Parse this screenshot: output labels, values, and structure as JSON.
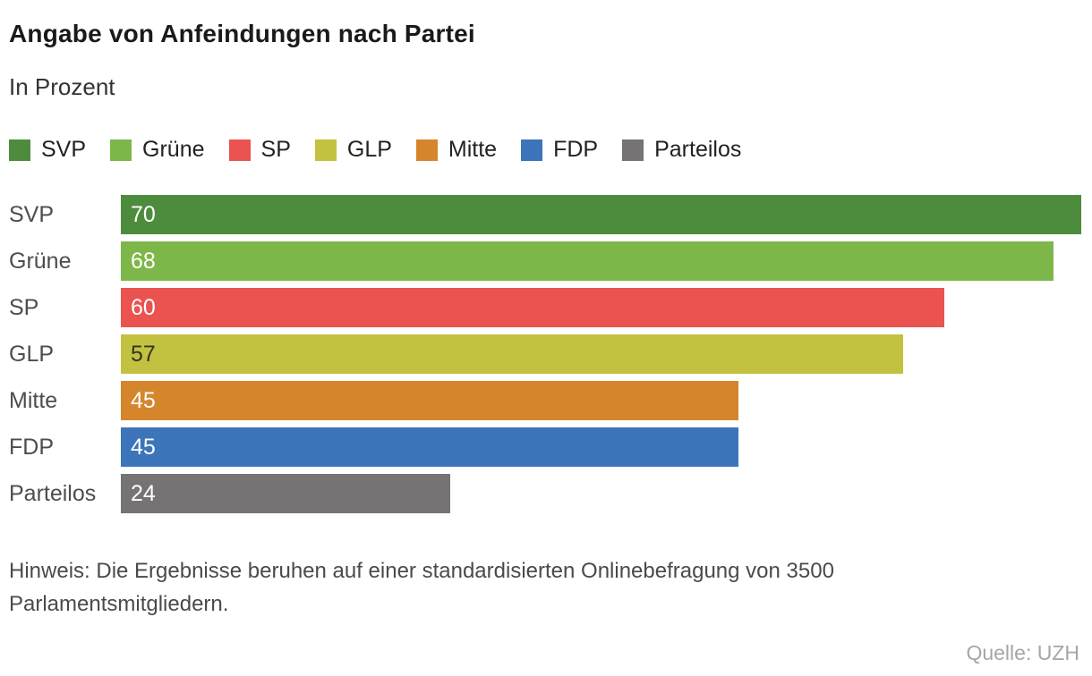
{
  "chart_data": {
    "type": "bar",
    "orientation": "horizontal",
    "title": "Angabe von Anfeindungen nach Partei",
    "subtitle": "In Prozent",
    "categories": [
      "SVP",
      "Grüne",
      "SP",
      "GLP",
      "Mitte",
      "FDP",
      "Parteilos"
    ],
    "values": [
      70,
      68,
      60,
      57,
      45,
      45,
      24
    ],
    "colors": [
      "#4e8c3d",
      "#7db74a",
      "#ea534f",
      "#c3c240",
      "#d5862c",
      "#3c75b9",
      "#757373"
    ],
    "value_label_colors": [
      "#ffffff",
      "#ffffff",
      "#ffffff",
      "#333322",
      "#ffffff",
      "#ffffff",
      "#ffffff"
    ],
    "xlim": [
      0,
      70
    ],
    "grid": false,
    "legend_position": "top",
    "legend_entries": [
      "SVP",
      "Grüne",
      "SP",
      "GLP",
      "Mitte",
      "FDP",
      "Parteilos"
    ],
    "note": "Hinweis: Die Ergebnisse beruhen auf einer standardisierten Onlinebefragung von 3500 Parlamentsmitgliedern.",
    "source": "Quelle: UZH"
  }
}
